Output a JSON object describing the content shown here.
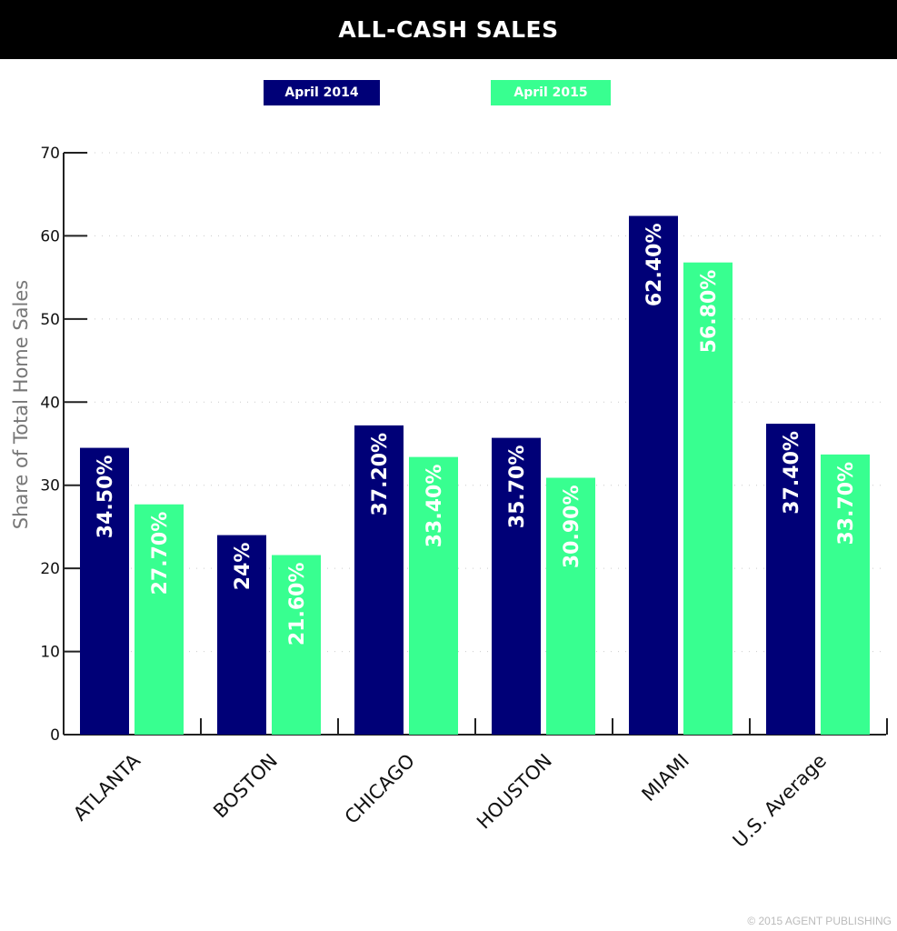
{
  "chart_data": {
    "type": "bar",
    "title": "ALL-CASH SALES",
    "ylabel": "Share of Total Home Sales",
    "xlabel": "",
    "ylim": [
      0,
      70
    ],
    "yticks": [
      0,
      10,
      20,
      30,
      40,
      50,
      60,
      70
    ],
    "grid": true,
    "legend_placement": "top-center",
    "categories": [
      "ATLANTA",
      "BOSTON",
      "CHICAGO",
      "HOUSTON",
      "MIAMI",
      "U.S. Average"
    ],
    "series": [
      {
        "name": "April 2014",
        "color": "#000077",
        "values": [
          34.5,
          24,
          37.2,
          35.7,
          62.4,
          37.4
        ],
        "labels": [
          "34.50%",
          "24%",
          "37.20%",
          "35.70%",
          "62.40%",
          "37.40%"
        ]
      },
      {
        "name": "April 2015",
        "color": "#38FF90",
        "values": [
          27.7,
          21.6,
          33.4,
          30.9,
          56.8,
          33.7
        ],
        "labels": [
          "27.70%",
          "21.60%",
          "33.40%",
          "30.90%",
          "56.80%",
          "33.70%"
        ]
      }
    ]
  },
  "footer": "© 2015 AGENT PUBLISHING"
}
